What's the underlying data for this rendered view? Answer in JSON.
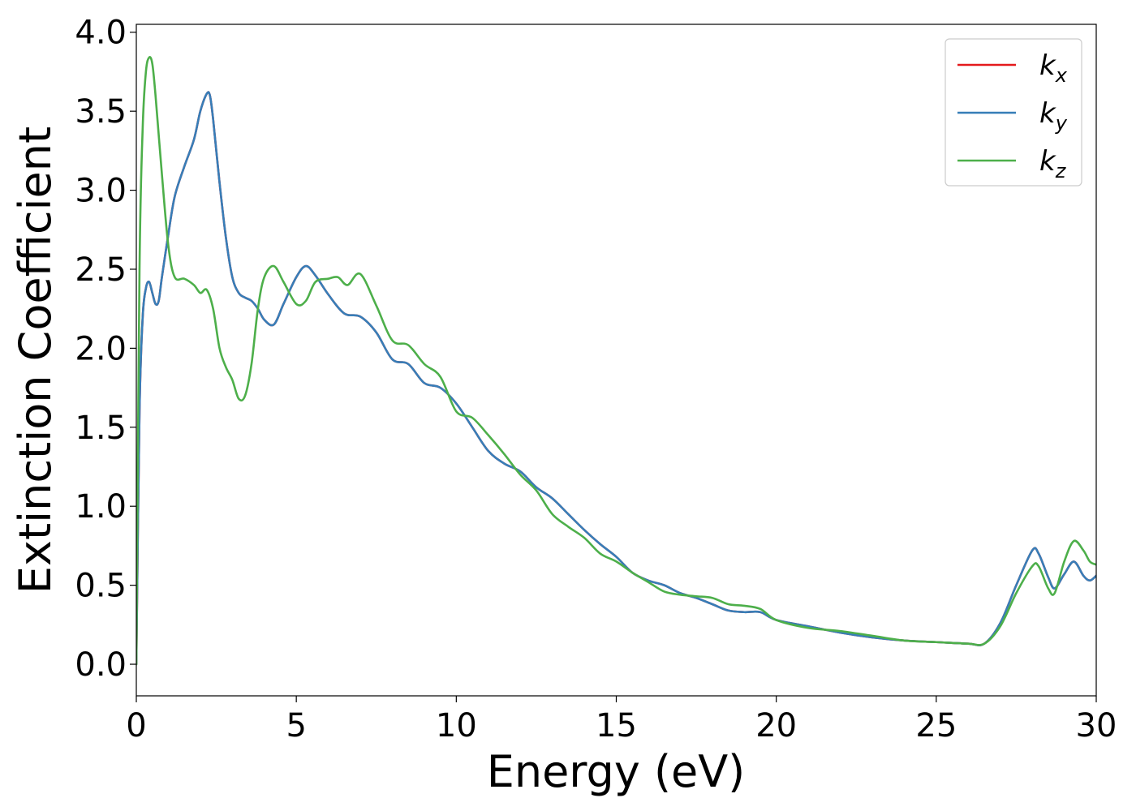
{
  "chart_data": {
    "type": "line",
    "xlabel": "Energy (eV)",
    "ylabel": "Extinction Coefficient",
    "xlim": [
      0,
      30
    ],
    "ylim": [
      -0.2,
      4.05
    ],
    "xticks": [
      0,
      5,
      10,
      15,
      20,
      25,
      30
    ],
    "xtick_labels": [
      "0",
      "5",
      "10",
      "15",
      "20",
      "25",
      "30"
    ],
    "yticks": [
      0,
      0.5,
      1,
      1.5,
      2,
      2.5,
      3,
      3.5,
      4
    ],
    "ytick_labels": [
      "0.0",
      "0.5",
      "1.0",
      "1.5",
      "2.0",
      "2.5",
      "3.0",
      "3.5",
      "4.0"
    ],
    "grid": false,
    "legend_position": "top-right",
    "series": [
      {
        "name": "k_x",
        "label_main": "k",
        "label_sub": "x",
        "color": "#e41a1c",
        "x": [
          0,
          0.1,
          0.2,
          0.3,
          0.4,
          0.5,
          0.6,
          0.7,
          0.8,
          1.0,
          1.2,
          1.5,
          1.8,
          2.0,
          2.2,
          2.3,
          2.4,
          2.6,
          2.8,
          3.0,
          3.2,
          3.4,
          3.6,
          3.8,
          4.0,
          4.3,
          4.6,
          5.0,
          5.3,
          5.6,
          6.0,
          6.5,
          7.0,
          7.5,
          8.0,
          8.5,
          9.0,
          9.5,
          10.0,
          10.5,
          11.0,
          11.5,
          12.0,
          12.5,
          13.0,
          13.5,
          14.0,
          14.5,
          15.0,
          15.5,
          16.0,
          16.5,
          17.0,
          17.5,
          18.0,
          18.5,
          19.0,
          19.5,
          20.0,
          21.0,
          22.0,
          23.0,
          24.0,
          25.0,
          26.0,
          26.5,
          27.0,
          27.5,
          28.0,
          28.2,
          28.5,
          28.7,
          29.0,
          29.3,
          29.6,
          29.8,
          30.0
        ],
        "y": [
          0.0,
          1.6,
          2.2,
          2.38,
          2.42,
          2.35,
          2.28,
          2.3,
          2.45,
          2.72,
          2.96,
          3.15,
          3.32,
          3.5,
          3.61,
          3.6,
          3.45,
          3.05,
          2.7,
          2.45,
          2.35,
          2.32,
          2.3,
          2.25,
          2.18,
          2.15,
          2.28,
          2.45,
          2.52,
          2.46,
          2.34,
          2.22,
          2.2,
          2.1,
          1.93,
          1.9,
          1.78,
          1.75,
          1.65,
          1.5,
          1.35,
          1.27,
          1.22,
          1.12,
          1.05,
          0.95,
          0.85,
          0.76,
          0.68,
          0.58,
          0.53,
          0.5,
          0.45,
          0.42,
          0.38,
          0.34,
          0.33,
          0.33,
          0.28,
          0.24,
          0.2,
          0.17,
          0.15,
          0.14,
          0.13,
          0.13,
          0.26,
          0.5,
          0.72,
          0.7,
          0.55,
          0.48,
          0.57,
          0.65,
          0.56,
          0.53,
          0.56
        ]
      },
      {
        "name": "k_y",
        "label_main": "k",
        "label_sub": "y",
        "color": "#377eb8",
        "x": [
          0,
          0.1,
          0.2,
          0.3,
          0.4,
          0.5,
          0.6,
          0.7,
          0.8,
          1.0,
          1.2,
          1.5,
          1.8,
          2.0,
          2.2,
          2.3,
          2.4,
          2.6,
          2.8,
          3.0,
          3.2,
          3.4,
          3.6,
          3.8,
          4.0,
          4.3,
          4.6,
          5.0,
          5.3,
          5.6,
          6.0,
          6.5,
          7.0,
          7.5,
          8.0,
          8.5,
          9.0,
          9.5,
          10.0,
          10.5,
          11.0,
          11.5,
          12.0,
          12.5,
          13.0,
          13.5,
          14.0,
          14.5,
          15.0,
          15.5,
          16.0,
          16.5,
          17.0,
          17.5,
          18.0,
          18.5,
          19.0,
          19.5,
          20.0,
          21.0,
          22.0,
          23.0,
          24.0,
          25.0,
          26.0,
          26.5,
          27.0,
          27.5,
          28.0,
          28.2,
          28.5,
          28.7,
          29.0,
          29.3,
          29.6,
          29.8,
          30.0
        ],
        "y": [
          0.0,
          1.6,
          2.2,
          2.38,
          2.42,
          2.35,
          2.28,
          2.3,
          2.45,
          2.72,
          2.96,
          3.15,
          3.32,
          3.5,
          3.61,
          3.6,
          3.45,
          3.05,
          2.7,
          2.45,
          2.35,
          2.32,
          2.3,
          2.25,
          2.18,
          2.15,
          2.28,
          2.45,
          2.52,
          2.46,
          2.34,
          2.22,
          2.2,
          2.1,
          1.93,
          1.9,
          1.78,
          1.75,
          1.65,
          1.5,
          1.35,
          1.27,
          1.22,
          1.12,
          1.05,
          0.95,
          0.85,
          0.76,
          0.68,
          0.58,
          0.53,
          0.5,
          0.45,
          0.42,
          0.38,
          0.34,
          0.33,
          0.33,
          0.28,
          0.24,
          0.2,
          0.17,
          0.15,
          0.14,
          0.13,
          0.13,
          0.26,
          0.5,
          0.72,
          0.7,
          0.55,
          0.48,
          0.57,
          0.65,
          0.56,
          0.53,
          0.56
        ]
      },
      {
        "name": "k_z",
        "label_main": "k",
        "label_sub": "z",
        "color": "#4daf4a",
        "x": [
          0,
          0.1,
          0.2,
          0.3,
          0.4,
          0.5,
          0.6,
          0.8,
          1.0,
          1.2,
          1.5,
          1.8,
          2.0,
          2.2,
          2.4,
          2.6,
          2.8,
          3.0,
          3.2,
          3.4,
          3.6,
          3.8,
          4.0,
          4.3,
          4.6,
          5.0,
          5.3,
          5.6,
          6.0,
          6.3,
          6.6,
          7.0,
          7.5,
          8.0,
          8.5,
          9.0,
          9.5,
          10.0,
          10.5,
          11.0,
          11.5,
          12.0,
          12.5,
          13.0,
          13.5,
          14.0,
          14.5,
          15.0,
          15.5,
          16.0,
          16.5,
          17.0,
          17.5,
          18.0,
          18.5,
          19.0,
          19.5,
          20.0,
          21.0,
          22.0,
          23.0,
          24.0,
          25.0,
          26.0,
          26.5,
          27.0,
          27.5,
          28.0,
          28.2,
          28.5,
          28.7,
          29.0,
          29.3,
          29.6,
          29.8,
          30.0
        ],
        "y": [
          0.0,
          2.5,
          3.4,
          3.75,
          3.84,
          3.8,
          3.6,
          3.1,
          2.65,
          2.45,
          2.44,
          2.4,
          2.35,
          2.37,
          2.25,
          2.0,
          1.88,
          1.8,
          1.68,
          1.7,
          1.9,
          2.25,
          2.45,
          2.52,
          2.42,
          2.28,
          2.3,
          2.42,
          2.44,
          2.45,
          2.4,
          2.47,
          2.27,
          2.05,
          2.02,
          1.9,
          1.82,
          1.6,
          1.56,
          1.45,
          1.33,
          1.2,
          1.1,
          0.95,
          0.87,
          0.8,
          0.7,
          0.65,
          0.58,
          0.52,
          0.46,
          0.44,
          0.43,
          0.42,
          0.38,
          0.37,
          0.35,
          0.28,
          0.23,
          0.21,
          0.18,
          0.15,
          0.14,
          0.13,
          0.13,
          0.24,
          0.45,
          0.62,
          0.62,
          0.48,
          0.45,
          0.65,
          0.78,
          0.72,
          0.65,
          0.63
        ]
      }
    ]
  }
}
